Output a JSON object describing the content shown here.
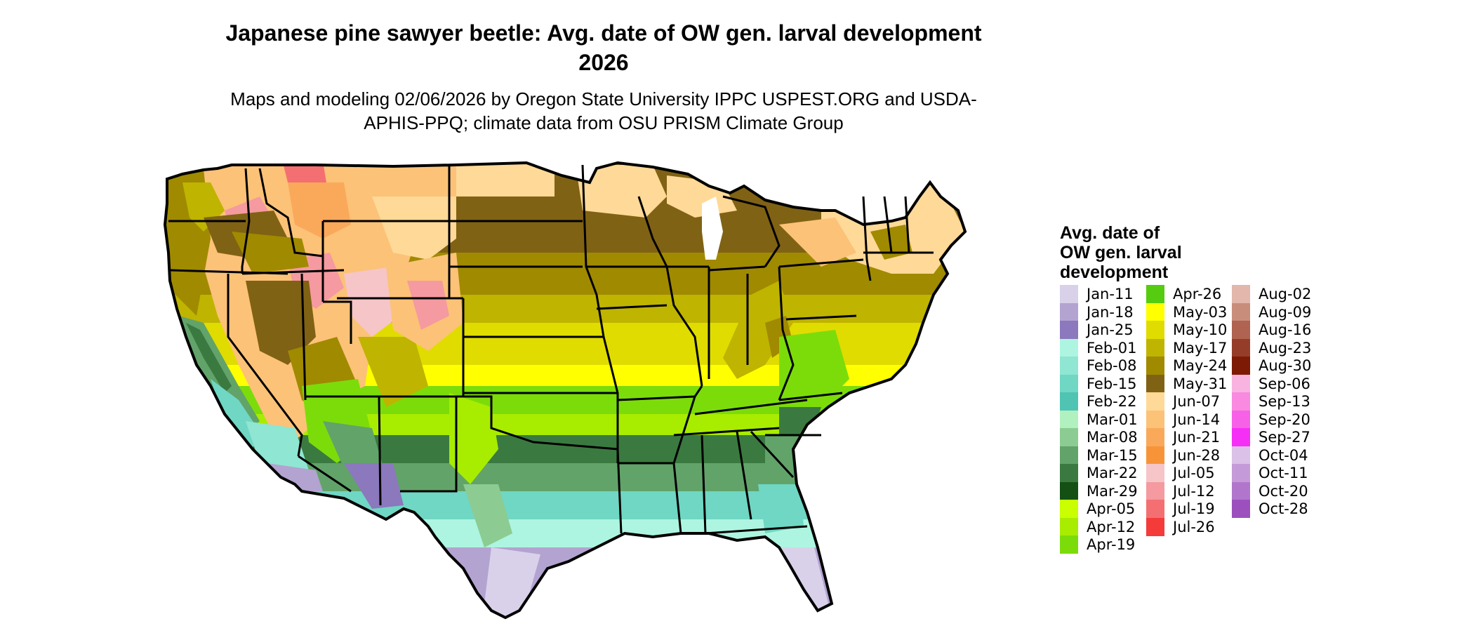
{
  "title": "Japanese pine sawyer beetle: Avg. date of OW gen. larval development 2026",
  "subtitle": "Maps and modeling 02/06/2026 by Oregon State University IPPC USPEST.ORG and USDA-APHIS-PPQ; climate data from OSU PRISM Climate Group",
  "legend": {
    "title_lines": [
      "Avg. date of",
      "OW gen. larval",
      "development"
    ],
    "items": [
      {
        "label": "Jan-11",
        "color": "#d9d1ea"
      },
      {
        "label": "Jan-18",
        "color": "#b3a3d1"
      },
      {
        "label": "Jan-25",
        "color": "#8c78bd"
      },
      {
        "label": "Feb-01",
        "color": "#adf5e0"
      },
      {
        "label": "Feb-08",
        "color": "#8fe6d2"
      },
      {
        "label": "Feb-15",
        "color": "#6fd7c4"
      },
      {
        "label": "Feb-22",
        "color": "#4fc4b2"
      },
      {
        "label": "Mar-01",
        "color": "#b1f1c0"
      },
      {
        "label": "Mar-08",
        "color": "#8ccc92"
      },
      {
        "label": "Mar-15",
        "color": "#62a36a"
      },
      {
        "label": "Mar-22",
        "color": "#3a7a40"
      },
      {
        "label": "Mar-29",
        "color": "#145014"
      },
      {
        "label": "Apr-05",
        "color": "#c9ff00"
      },
      {
        "label": "Apr-12",
        "color": "#a8ec00"
      },
      {
        "label": "Apr-19",
        "color": "#7cdc0a"
      },
      {
        "label": "Apr-26",
        "color": "#55cc10"
      },
      {
        "label": "May-03",
        "color": "#ffff00"
      },
      {
        "label": "May-10",
        "color": "#e0dc00"
      },
      {
        "label": "May-17",
        "color": "#bfb400"
      },
      {
        "label": "May-24",
        "color": "#a08a00"
      },
      {
        "label": "May-31",
        "color": "#806214"
      },
      {
        "label": "Jun-07",
        "color": "#ffd997"
      },
      {
        "label": "Jun-14",
        "color": "#fcc277"
      },
      {
        "label": "Jun-21",
        "color": "#faa95a"
      },
      {
        "label": "Jun-28",
        "color": "#f7943a"
      },
      {
        "label": "Jul-05",
        "color": "#f6c5c8"
      },
      {
        "label": "Jul-12",
        "color": "#f59aa0"
      },
      {
        "label": "Jul-19",
        "color": "#f46f72"
      },
      {
        "label": "Jul-26",
        "color": "#f53a3a"
      },
      {
        "label": "Aug-02",
        "color": "#e3b7ab"
      },
      {
        "label": "Aug-09",
        "color": "#c98d7c"
      },
      {
        "label": "Aug-16",
        "color": "#b06350"
      },
      {
        "label": "Aug-23",
        "color": "#963d2a"
      },
      {
        "label": "Aug-30",
        "color": "#7d1a05"
      },
      {
        "label": "Sep-06",
        "color": "#f9b3e1"
      },
      {
        "label": "Sep-13",
        "color": "#f98ae0"
      },
      {
        "label": "Sep-20",
        "color": "#f761e7"
      },
      {
        "label": "Sep-27",
        "color": "#f52ff5"
      },
      {
        "label": "Oct-04",
        "color": "#dbc0e8"
      },
      {
        "label": "Oct-11",
        "color": "#c59ad8"
      },
      {
        "label": "Oct-20",
        "color": "#b176cc"
      },
      {
        "label": "Oct-28",
        "color": "#9c50be"
      }
    ]
  },
  "map_colors": {
    "state_border": "#000000",
    "northern_plains": "#806214",
    "plains_mid": "#a08a00",
    "corn_belt": "#bfb400",
    "central_band": "#e0dc00",
    "yellow_band": "#ffff00",
    "green_band": "#7cdc0a",
    "southern_green": "#62a36a",
    "gulf_teal": "#6fd7c4",
    "gulf_mint": "#adf5e0",
    "deep_south": "#b3a3d1",
    "mountains": "#fcc277",
    "high_peaks": "#f59aa0",
    "new_england": "#ffd997"
  }
}
